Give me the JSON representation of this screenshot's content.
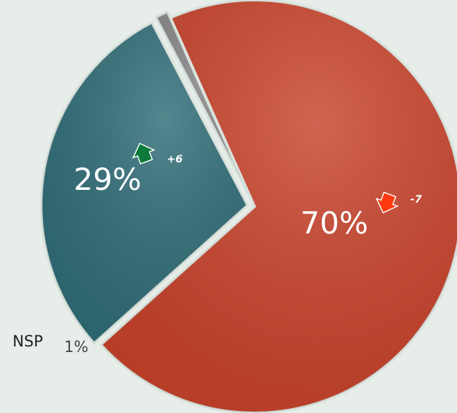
{
  "chart_data": {
    "type": "pie",
    "categories": [
      null,
      null,
      "NSP"
    ],
    "values": [
      70,
      29,
      1
    ],
    "value_labels": [
      "70%",
      "29%",
      "1%"
    ],
    "colors": [
      "#c7422a",
      "#2f6c76",
      "#8a8a8a"
    ],
    "changes": [
      -7,
      6,
      null
    ],
    "change_labels": [
      "-7",
      "+6",
      null
    ],
    "change_colors": [
      "#ff3a10",
      "#0c7a3a",
      null
    ]
  }
}
